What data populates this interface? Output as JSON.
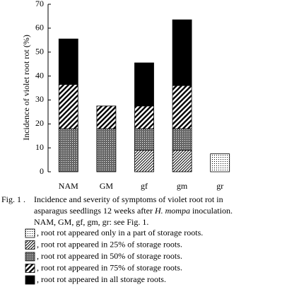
{
  "chart_data": {
    "type": "stacked-bar",
    "y_label": "Incidence of violet root rot (%)",
    "categories": [
      "NAM",
      "GM",
      "gf",
      "gm",
      "gr"
    ],
    "ylim": [
      0,
      70
    ],
    "yticks": [
      0,
      10,
      20,
      30,
      40,
      50,
      60,
      70
    ],
    "series": [
      {
        "name": ", root rot appeared only in a part of storage roots.",
        "pattern": "dots",
        "values": [
          0,
          0,
          0,
          0,
          7.5
        ]
      },
      {
        "name": ", root rot appeared in 25% of storage roots.",
        "pattern": "fine-hatch",
        "values": [
          0,
          0,
          9,
          9,
          0
        ]
      },
      {
        "name": ", root rot appeared in 50% of storage roots.",
        "pattern": "crosshatch",
        "values": [
          18,
          18,
          9,
          9,
          0
        ]
      },
      {
        "name": ", root rot appeared in 75% of storage roots.",
        "pattern": "hatch",
        "values": [
          18.5,
          9.5,
          9.5,
          18,
          0
        ]
      },
      {
        "name": ", root rot appeared in all storage roots.",
        "pattern": "solid",
        "values": [
          19,
          0,
          18,
          27.5,
          0
        ]
      }
    ],
    "caption": {
      "label": "Fig. 1 .",
      "line1": "Incidence and severity of symptoms of violet root rot in",
      "line2": "asparagus seedlings 12 weeks after",
      "species": "H. mompa",
      "line2_end": "inoculation.",
      "line3": "NAM, GM, gf, gm, gr: see Fig. 1."
    }
  }
}
